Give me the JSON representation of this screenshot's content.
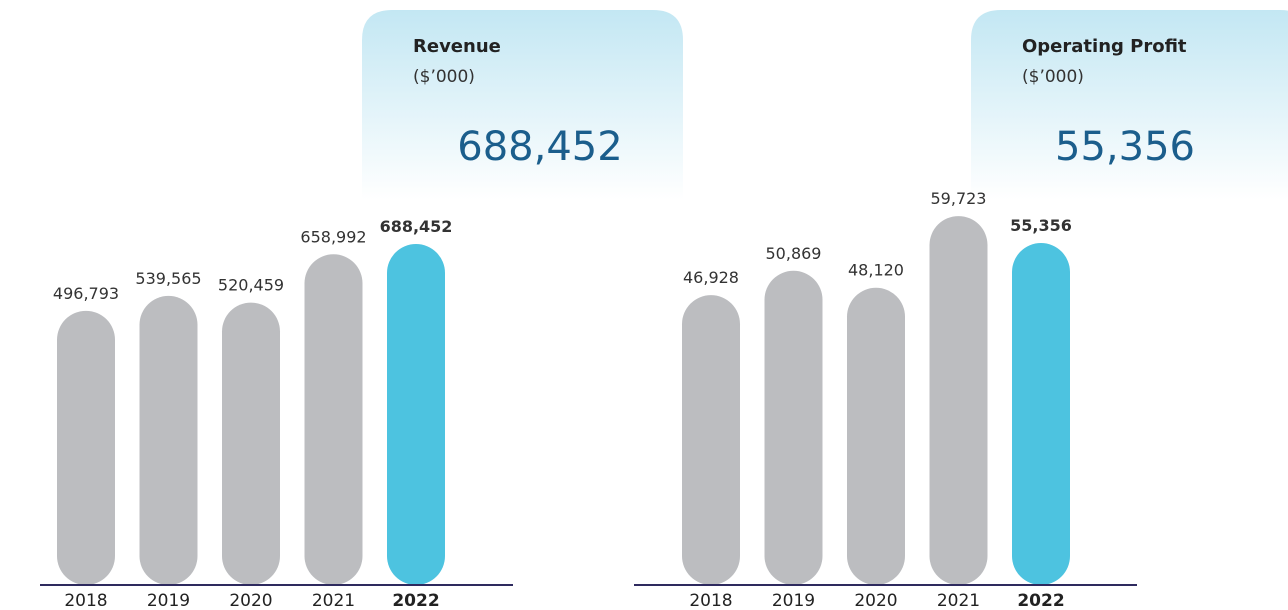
{
  "chart_data": [
    {
      "type": "bar",
      "title": "Revenue",
      "subtitle": "($’000)",
      "annotation": "688,452",
      "categories": [
        "2018",
        "2019",
        "2020",
        "2021",
        "2022"
      ],
      "values": [
        496793,
        539565,
        520459,
        658992,
        688452
      ],
      "value_labels": [
        "496,793",
        "539,565",
        "520,459",
        "658,992",
        "688,452"
      ],
      "colors": [
        "#bcbdc0",
        "#bcbdc0",
        "#bcbdc0",
        "#bcbdc0",
        "#4dc3e0"
      ],
      "ylim": [
        -290000,
        700000
      ]
    },
    {
      "type": "bar",
      "title": "Operating Profit",
      "subtitle": "($’000)",
      "annotation": "55,356",
      "categories": [
        "2018",
        "2019",
        "2020",
        "2021",
        "2022"
      ],
      "values": [
        46928,
        50869,
        48120,
        59723,
        55356
      ],
      "value_labels": [
        "46,928",
        "50,869",
        "48,120",
        "59,723",
        "55,356"
      ],
      "colors": [
        "#bcbdc0",
        "#bcbdc0",
        "#bcbdc0",
        "#bcbdc0",
        "#4dc3e0"
      ],
      "ylim": [
        0,
        62000
      ]
    }
  ]
}
